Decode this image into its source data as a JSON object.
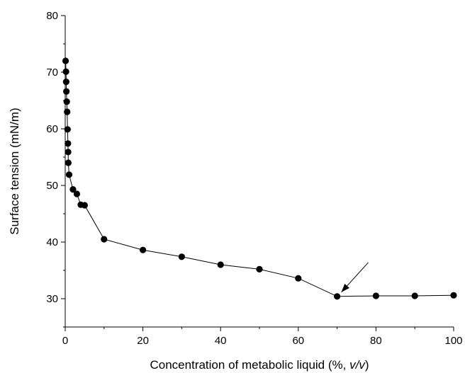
{
  "chart_data": {
    "type": "scatter",
    "title": "",
    "xlabel_main": "Concentration of metabolic liquid (%, ",
    "xlabel_italic": "v/v",
    "xlabel_close": ")",
    "ylabel": "Surface tension (mN/m)",
    "xlim": [
      0,
      100
    ],
    "ylim": [
      25,
      80
    ],
    "x_ticks": [
      0,
      20,
      40,
      60,
      80,
      100
    ],
    "y_ticks": [
      30,
      40,
      50,
      60,
      70,
      80
    ],
    "grid": false,
    "series": [
      {
        "connected": true,
        "marker": "circle",
        "color": "#000000",
        "points": [
          {
            "x": 0.1,
            "y": 72.0
          },
          {
            "x": 0.2,
            "y": 70.1
          },
          {
            "x": 0.25,
            "y": 68.3
          },
          {
            "x": 0.3,
            "y": 66.6
          },
          {
            "x": 0.4,
            "y": 64.8
          },
          {
            "x": 0.5,
            "y": 63.0
          },
          {
            "x": 0.6,
            "y": 59.9
          },
          {
            "x": 0.7,
            "y": 57.4
          },
          {
            "x": 0.75,
            "y": 55.9
          },
          {
            "x": 0.8,
            "y": 54.0
          },
          {
            "x": 1.0,
            "y": 51.9
          },
          {
            "x": 2.0,
            "y": 49.3
          },
          {
            "x": 3.0,
            "y": 48.5
          },
          {
            "x": 4.0,
            "y": 46.6
          },
          {
            "x": 5.0,
            "y": 46.5
          },
          {
            "x": 10,
            "y": 40.5
          },
          {
            "x": 20,
            "y": 38.6
          },
          {
            "x": 30,
            "y": 37.4
          },
          {
            "x": 40,
            "y": 36.0
          },
          {
            "x": 50,
            "y": 35.2
          },
          {
            "x": 60,
            "y": 33.6
          },
          {
            "x": 70,
            "y": 30.4
          },
          {
            "x": 80,
            "y": 30.5
          },
          {
            "x": 90,
            "y": 30.5
          },
          {
            "x": 100,
            "y": 30.6
          }
        ]
      }
    ],
    "annotations": [
      {
        "type": "arrow",
        "points_to": {
          "x": 70,
          "y": 30.4
        }
      }
    ]
  }
}
